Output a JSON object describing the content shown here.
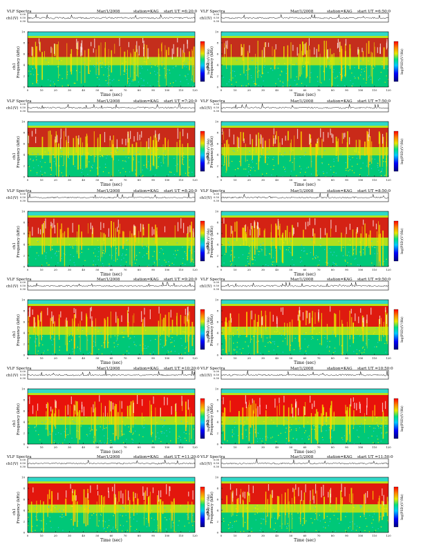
{
  "figure": {
    "header_left": "VLF Spectra",
    "date_label": "Mar/1/2008",
    "station_label": "station=KAG",
    "start_prefix": "start  UT =",
    "voltage_axis_label": "ch1(V)",
    "voltage_ticks": [
      "0.00",
      "0.50",
      "0.30"
    ],
    "freq_axis_label_line1": "ch1",
    "freq_axis_label_line2": "Frequency (kHz)",
    "colorbar_label": "log(PSD)(V²/Hz)",
    "xlabel": "Time (sec)",
    "colors": {
      "low": "#0000c8",
      "mid": "#00c878",
      "band": "#ff0000",
      "hi": "#e8e800"
    }
  },
  "panels": [
    {
      "start_time": "6:20:0"
    },
    {
      "start_time": "6:50:0"
    },
    {
      "start_time": "7:20:0"
    },
    {
      "start_time": "7:50:0"
    },
    {
      "start_time": "8:20:0"
    },
    {
      "start_time": "8:50:0"
    },
    {
      "start_time": "9:20:0"
    },
    {
      "start_time": "9:50:0"
    },
    {
      "start_time": "10:20:0"
    },
    {
      "start_time": "10:50:0"
    },
    {
      "start_time": "11:20:0"
    },
    {
      "start_time": "11:50:0"
    }
  ],
  "chart_data": {
    "type": "heatmap",
    "xlabel": "Time (sec)",
    "ylabel": "Frequency (kHz)",
    "xlim": [
      0,
      120
    ],
    "ylim": [
      0,
      10
    ],
    "x_ticks": [
      0,
      10,
      20,
      30,
      40,
      50,
      60,
      70,
      80,
      90,
      100,
      110,
      120
    ],
    "y_ticks": [
      0,
      2,
      4,
      6,
      8,
      10
    ],
    "colorbar_label": "log(PSD)(V²/Hz)",
    "series": [
      {
        "panel": 1,
        "start": "6:20:0",
        "band_intensity": 0.55
      },
      {
        "panel": 2,
        "start": "6:50:0",
        "band_intensity": 0.55
      },
      {
        "panel": 3,
        "start": "7:20:0",
        "band_intensity": 0.6
      },
      {
        "panel": 4,
        "start": "7:50:0",
        "band_intensity": 0.6
      },
      {
        "panel": 5,
        "start": "8:20:0",
        "band_intensity": 0.68
      },
      {
        "panel": 6,
        "start": "8:50:0",
        "band_intensity": 0.7
      },
      {
        "panel": 7,
        "start": "9:20:0",
        "band_intensity": 0.78
      },
      {
        "panel": 8,
        "start": "9:50:0",
        "band_intensity": 0.8
      },
      {
        "panel": 9,
        "start": "10:20:0",
        "band_intensity": 0.9
      },
      {
        "panel": 10,
        "start": "10:50:0",
        "band_intensity": 0.9
      },
      {
        "panel": 11,
        "start": "11:20:0",
        "band_intensity": 0.85
      },
      {
        "panel": 12,
        "start": "11:50:0",
        "band_intensity": 0.82
      }
    ]
  }
}
